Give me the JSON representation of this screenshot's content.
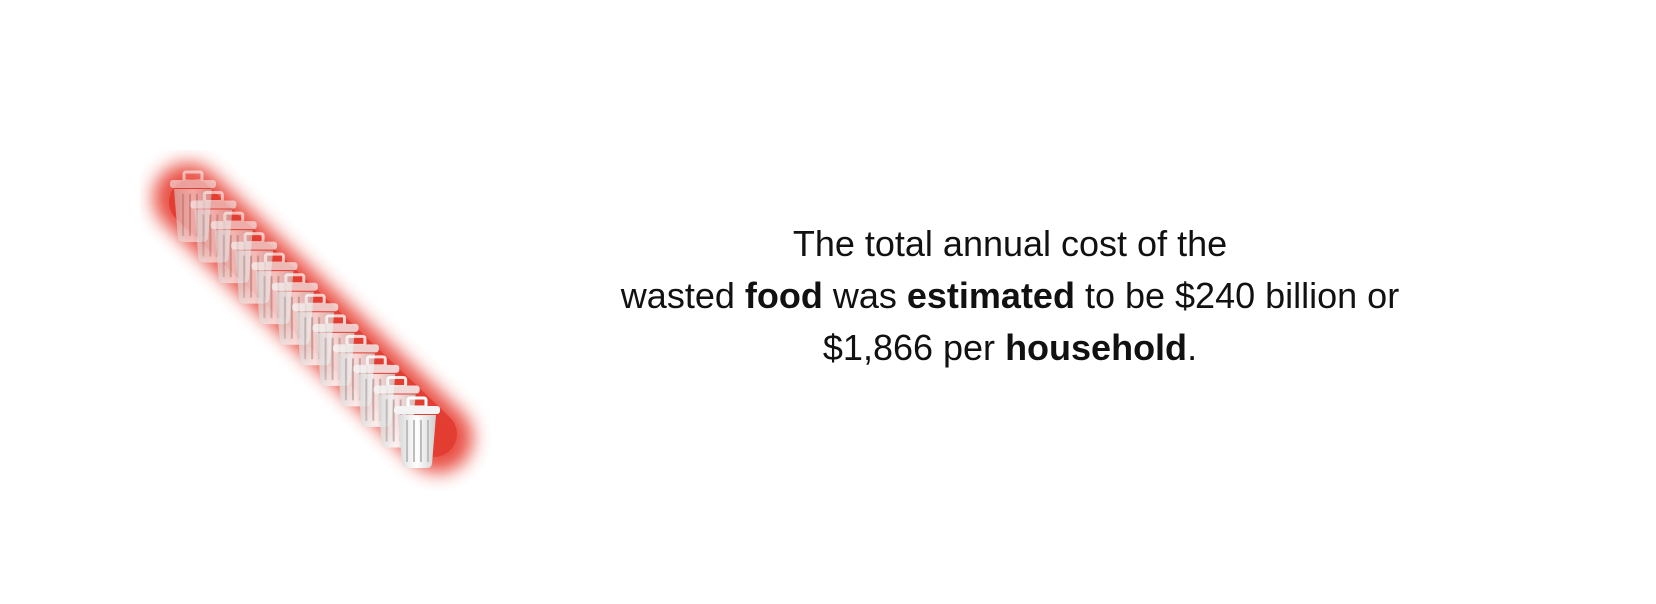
{
  "illustration": {
    "icon": "trash-bin-icon",
    "trail_count": 12,
    "glow_color": "#e8463a",
    "bin_color": "#f2f2f2"
  },
  "statement": {
    "line1": "The total annual cost of the",
    "line2": {
      "t1": "wasted ",
      "b1": "food",
      "t2": " was ",
      "b2": "estimated",
      "t3": " to be $240 billion or"
    },
    "line3": {
      "t1": "$1,866 per ",
      "b1": "household",
      "t2": "."
    }
  }
}
